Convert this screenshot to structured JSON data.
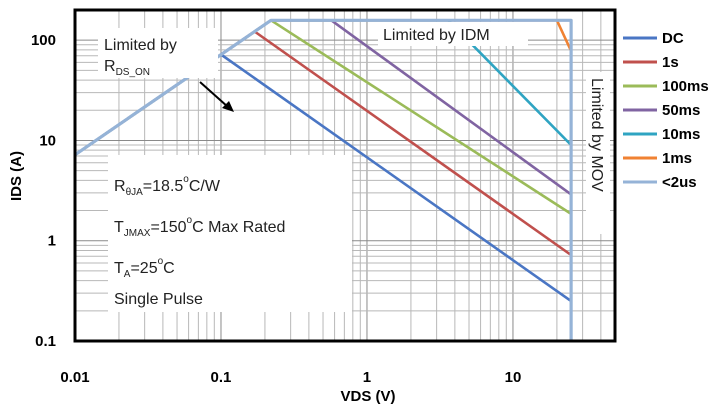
{
  "chart_data": {
    "type": "line",
    "title": "",
    "xlabel": "VDS (V)",
    "ylabel": "IDS (A)",
    "xscale": "log",
    "yscale": "log",
    "xlim": [
      0.01,
      50
    ],
    "ylim": [
      0.1,
      200
    ],
    "xticks": [
      {
        "value": 0.01,
        "label": "0.01"
      },
      {
        "value": 0.1,
        "label": "0.1"
      },
      {
        "value": 1,
        "label": "1"
      },
      {
        "value": 10,
        "label": "10"
      }
    ],
    "yticks": [
      {
        "value": 0.1,
        "label": "0.1"
      },
      {
        "value": 1,
        "label": "1"
      },
      {
        "value": 10,
        "label": "10"
      },
      {
        "value": 100,
        "label": "100"
      }
    ],
    "grid": true,
    "legend_position": "right",
    "series": [
      {
        "name": "DC",
        "color": "#4a76c4",
        "points": [
          [
            0.01,
            7.2
          ],
          [
            0.1,
            72
          ],
          [
            25,
            0.25
          ]
        ]
      },
      {
        "name": "1s",
        "color": "#c0504d",
        "points": [
          [
            0.01,
            7.2
          ],
          [
            0.17,
            122
          ],
          [
            25,
            0.72
          ]
        ]
      },
      {
        "name": "100ms",
        "color": "#9bbb59",
        "points": [
          [
            0.01,
            7.2
          ],
          [
            0.22,
            158
          ],
          [
            25,
            1.85
          ]
        ]
      },
      {
        "name": "50ms",
        "color": "#8064a2",
        "points": [
          [
            0.01,
            7.2
          ],
          [
            0.22,
            158
          ],
          [
            0.57,
            158
          ],
          [
            25,
            2.9
          ]
        ]
      },
      {
        "name": "10ms",
        "color": "#2fa4c2",
        "points": [
          [
            0.01,
            7.2
          ],
          [
            0.22,
            158
          ],
          [
            3.6,
            158
          ],
          [
            25,
            9.0
          ]
        ]
      },
      {
        "name": "1ms",
        "color": "#f08232",
        "points": [
          [
            0.01,
            7.2
          ],
          [
            0.22,
            158
          ],
          [
            20,
            158
          ],
          [
            25,
            78
          ]
        ]
      },
      {
        "name": "<2us",
        "color": "#95b3d7",
        "points": [
          [
            0.01,
            7.2
          ],
          [
            0.22,
            158
          ],
          [
            25,
            158
          ],
          [
            25,
            0.1
          ]
        ]
      }
    ],
    "annotations": {
      "rds": {
        "line1": "Limited by",
        "main": "R",
        "sub": "DS_ON"
      },
      "idm": "Limited by IDM",
      "mov": "Limited by MOV",
      "rtheta": {
        "main": "R",
        "sub": "θJA",
        "rest1": "=18.5",
        "sup": "o",
        "rest2": "C/W"
      },
      "tj": {
        "main": "T",
        "sub": "JMAX",
        "rest1": "=150",
        "sup": "o",
        "rest2": "C Max Rated"
      },
      "ta": {
        "main": "T",
        "sub": "A",
        "rest1": "=25",
        "sup": "o",
        "rest2": "C"
      },
      "pulse": "Single Pulse"
    }
  }
}
